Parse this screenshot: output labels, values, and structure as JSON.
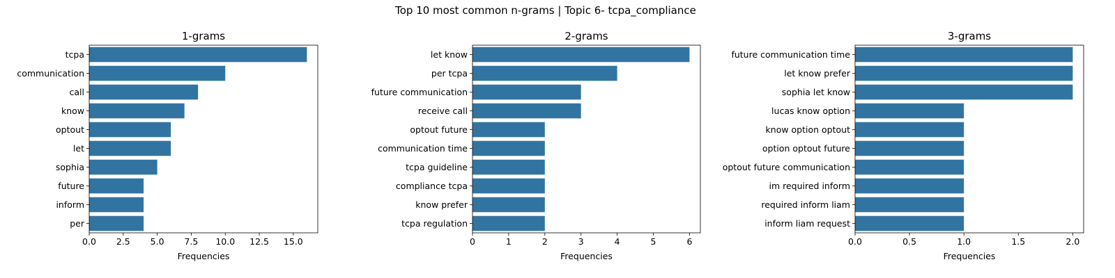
{
  "suptitle": "Top 10 most common n-grams | Topic 6- tcpa_compliance",
  "bar_color": "#3274a1",
  "chart_data": [
    {
      "type": "bar",
      "orientation": "horizontal",
      "title": "1-grams",
      "xlabel": "Frequencies",
      "ylabel": "",
      "categories": [
        "tcpa",
        "communication",
        "call",
        "know",
        "optout",
        "let",
        "sophia",
        "future",
        "inform",
        "per"
      ],
      "values": [
        16,
        10,
        8,
        7,
        6,
        6,
        5,
        4,
        4,
        4
      ],
      "xlim": [
        0,
        16.8
      ],
      "xticks": [
        0,
        2.5,
        5,
        7.5,
        10,
        12.5,
        15
      ],
      "xtick_labels": [
        "0.0",
        "2.5",
        "5.0",
        "7.5",
        "10.0",
        "12.5",
        "15.0"
      ],
      "grid": false
    },
    {
      "type": "bar",
      "orientation": "horizontal",
      "title": "2-grams",
      "xlabel": "Frequencies",
      "ylabel": "",
      "categories": [
        "let know",
        "per tcpa",
        "future communication",
        "receive call",
        "optout future",
        "communication time",
        "tcpa guideline",
        "compliance tcpa",
        "know prefer",
        "tcpa regulation"
      ],
      "values": [
        6,
        4,
        3,
        3,
        2,
        2,
        2,
        2,
        2,
        2
      ],
      "xlim": [
        0,
        6.3
      ],
      "xticks": [
        0,
        1,
        2,
        3,
        4,
        5,
        6
      ],
      "xtick_labels": [
        "0",
        "1",
        "2",
        "3",
        "4",
        "5",
        "6"
      ],
      "grid": false
    },
    {
      "type": "bar",
      "orientation": "horizontal",
      "title": "3-grams",
      "xlabel": "Frequencies",
      "ylabel": "",
      "categories": [
        "future communication time",
        "let know prefer",
        "sophia let know",
        "lucas know option",
        "know option optout",
        "option optout future",
        "optout future communication",
        "im required inform",
        "required inform liam",
        "inform liam request"
      ],
      "values": [
        2,
        2,
        2,
        1,
        1,
        1,
        1,
        1,
        1,
        1
      ],
      "xlim": [
        0,
        2.1
      ],
      "xticks": [
        0,
        0.5,
        1,
        1.5,
        2
      ],
      "xtick_labels": [
        "0.0",
        "0.5",
        "1.0",
        "1.5",
        "2.0"
      ],
      "grid": false
    }
  ]
}
